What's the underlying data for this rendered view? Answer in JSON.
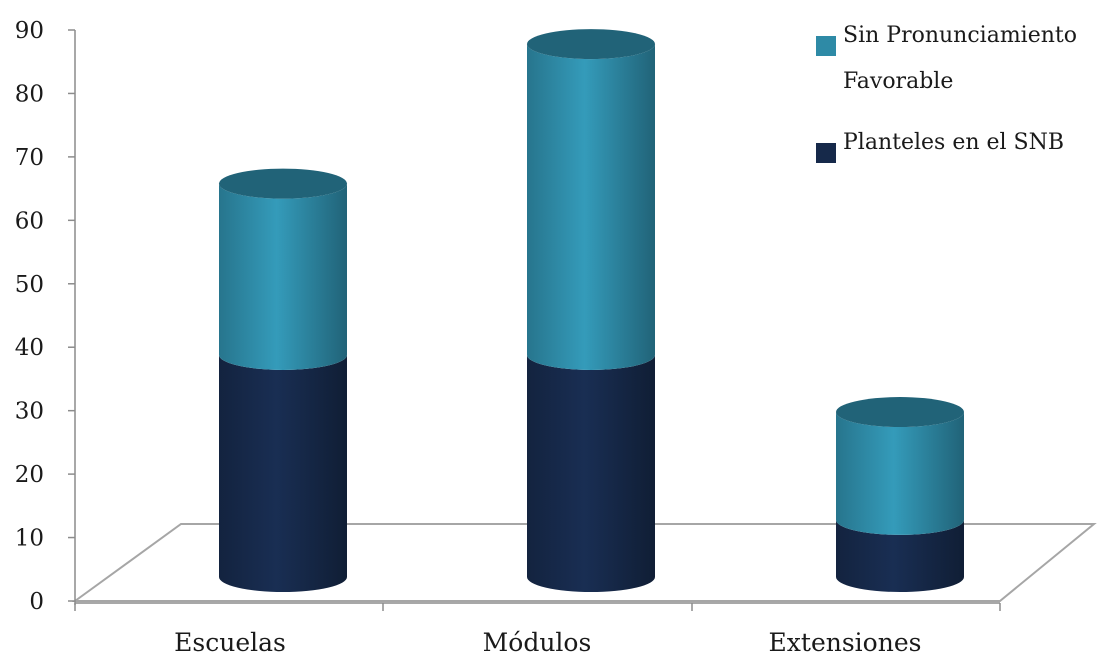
{
  "chart_data": {
    "type": "bar",
    "stacked": true,
    "style": "3d-cylinder",
    "categories": [
      "Escuelas",
      "Módulos",
      "Extensiones"
    ],
    "series": [
      {
        "name": "Planteles en el SNB",
        "values": [
          35,
          35,
          9
        ],
        "color": "#16294a"
      },
      {
        "name": "Sin Pronunciamiento Favorable",
        "values": [
          27,
          49,
          17
        ],
        "color": "#2e8aa6"
      }
    ],
    "y_ticks": [
      0,
      10,
      20,
      30,
      40,
      50,
      60,
      70,
      80,
      90
    ],
    "ylim": [
      0,
      90
    ],
    "title": "",
    "xlabel": "",
    "ylabel": "",
    "grid": false,
    "legend_position": "top-right",
    "legend_order": [
      {
        "name": "Sin Pronunciamiento Favorable",
        "lines": [
          "Sin Pronunciamiento",
          "Favorable"
        ]
      },
      {
        "name": "Planteles en el SNB",
        "lines": [
          "Planteles en el SNB"
        ]
      }
    ],
    "colors": {
      "axis": "#8c8c8c",
      "floor": "#a6a6a6"
    }
  }
}
